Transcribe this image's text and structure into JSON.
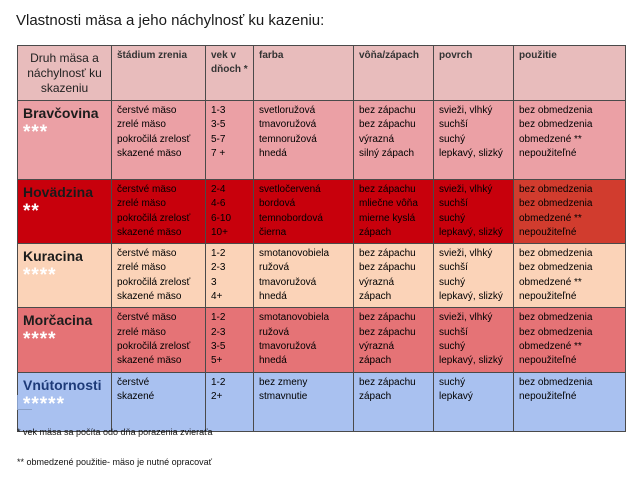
{
  "title": "Vlastnosti mäsa a jeho náchylnosť  ku kazeniu:",
  "table": {
    "headers": [
      "Druh mäsa a náchylnosť ku skazeniu",
      "štádium zrenia",
      "vek v dňoch *",
      "farba",
      "vôňa/zápach",
      "povrch",
      "použitie"
    ],
    "rows": [
      {
        "name": "Bravčovina",
        "stars": "***",
        "stadium": [
          "čerstvé mäso",
          "zrelé mäso",
          "pokročilá zrelosť",
          "skazené mäso"
        ],
        "vek": [
          "1-3",
          "3-5",
          "5-7",
          "7 +"
        ],
        "farba": [
          "svetloružová",
          "tmavoružová",
          "temnoružová",
          "hnedá"
        ],
        "vona": [
          "bez zápachu",
          "bez zápachu",
          "výrazná",
          "silný zápach"
        ],
        "povrch": [
          "svieži, vlhký",
          "suchší",
          "suchý",
          "lepkavý, slizký"
        ],
        "pouzitie": [
          "bez obmedzenia",
          "bez obmedzenia",
          "obmedzené **",
          "nepoužiteľné"
        ]
      },
      {
        "name": "Hovädzina",
        "stars": "**",
        "stadium": [
          "čerstvé mäso",
          "zrelé mäso",
          "pokročilá zrelosť",
          "skazené mäso"
        ],
        "vek": [
          "2-4",
          "4-6",
          "6-10",
          "10+"
        ],
        "farba": [
          "svetločervená",
          "bordová",
          "temnobordová",
          "čierna"
        ],
        "vona": [
          "bez zápachu",
          "mliečne vôňa",
          "mierne kyslá",
          "zápach"
        ],
        "povrch": [
          "svieži, vlhký",
          "suchší",
          "suchý",
          "lepkavý, slizký"
        ],
        "pouzitie": [
          "bez obmedzenia",
          "bez obmedzenia",
          "obmedzené **",
          "nepoužiteľné"
        ]
      },
      {
        "name": "Kuracina",
        "stars": "****",
        "stadium": [
          "čerstvé mäso",
          "zrelé mäso",
          "pokročilá zrelosť",
          "skazené mäso"
        ],
        "vek": [
          "1-2",
          "2-3",
          "3",
          "4+"
        ],
        "farba": [
          "smotanovobiela",
          "ružová",
          "tmavoružová",
          "hnedá"
        ],
        "vona": [
          "bez zápachu",
          "bez zápachu",
          "výrazná",
          "zápach"
        ],
        "povrch": [
          "svieži, vlhký",
          "suchší",
          "suchý",
          "lepkavý, slizký"
        ],
        "pouzitie": [
          "bez obmedzenia",
          "bez obmedzenia",
          "obmedzené **",
          "nepoužiteľné"
        ]
      },
      {
        "name": "Morčacina",
        "stars": "****",
        "stadium": [
          "čerstvé mäso",
          "zrelé mäso",
          "pokročilá zrelosť",
          "skazené mäso"
        ],
        "vek": [
          "1-2",
          "2-3",
          "3-5",
          "5+"
        ],
        "farba": [
          "smotanovobiela",
          "ružová",
          "tmavoružová",
          "hnedá"
        ],
        "vona": [
          "bez zápachu",
          "bez zápachu",
          "výrazná",
          "zápach"
        ],
        "povrch": [
          "svieži, vlhký",
          "suchší",
          "suchý",
          "lepkavý, slizký"
        ],
        "pouzitie": [
          "bez obmedzenia",
          "bez obmedzenia",
          "obmedzené **",
          "nepoužiteľné"
        ]
      },
      {
        "name": "Vnútornosti",
        "stars": "*****",
        "stadium": [
          "čerstvé",
          "skazené"
        ],
        "vek": [
          "1-2",
          "2+"
        ],
        "farba": [
          "bez zmeny",
          "stmavnutie"
        ],
        "vona": [
          "bez zápachu",
          "zápach"
        ],
        "povrch": [
          "suchý",
          "lepkavý"
        ],
        "pouzitie": [
          "bez obmedzenia",
          "nepoužiteľné"
        ]
      }
    ]
  },
  "notes": {
    "note1": "*  vek mäsa sa počíta odo dňa porazenia zvieraťa",
    "note2": "** obmedzené použitie- mäso je nutné opracovať"
  },
  "colors": {
    "header_bg": "#e8bcbc",
    "row_bravcovina": "#eba0a5",
    "row_hovadzina": "#c8000c",
    "row_kuracina": "#fbd3b8",
    "row_morcacina": "#e57376",
    "row_vnutornosti": "#a9c1f0"
  }
}
